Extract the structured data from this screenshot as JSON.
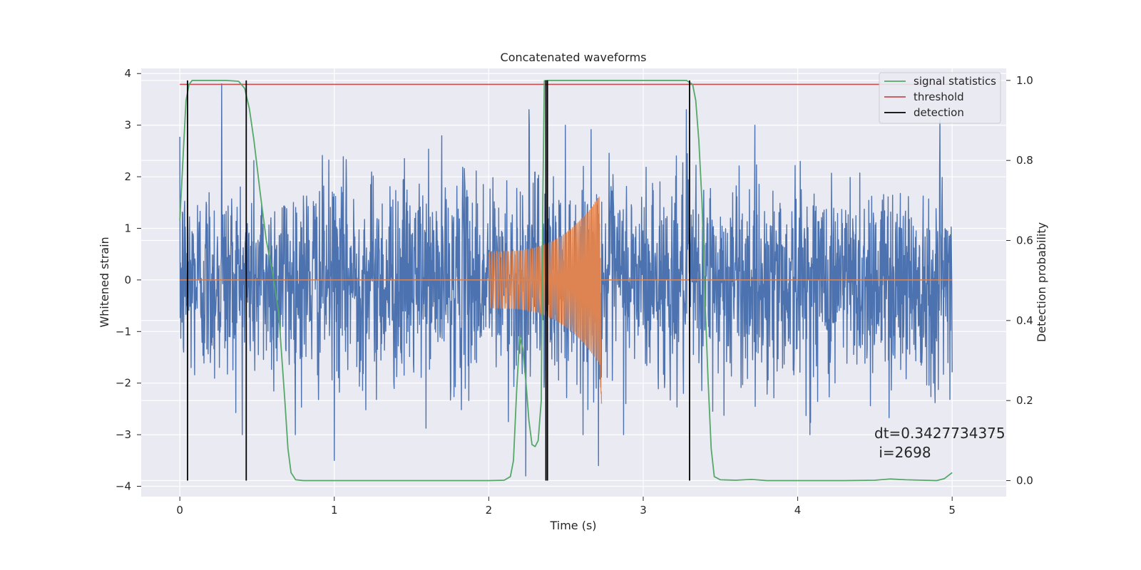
{
  "chart_data": {
    "type": "line",
    "title": "Concatenated waveforms",
    "xlabel": "Time (s)",
    "ylabel_left": "Whitened strain",
    "ylabel_right": "Detection probability",
    "xlim": [
      -0.25,
      5.35
    ],
    "ylim_left": [
      -4.2,
      4.1
    ],
    "ylim_right": [
      -0.04,
      1.03
    ],
    "x_ticks": [
      0,
      1,
      2,
      3,
      4,
      5
    ],
    "y_ticks_left": [
      -4,
      -3,
      -2,
      -1,
      0,
      1,
      2,
      3,
      4
    ],
    "y_ticks_right": [
      0.0,
      0.2,
      0.4,
      0.6,
      0.8,
      1.0
    ],
    "x_tick_labels": [
      "0",
      "1",
      "2",
      "3",
      "4",
      "5"
    ],
    "y_tick_labels_left": [
      "−4",
      "−3",
      "−2",
      "−1",
      "0",
      "1",
      "2",
      "3",
      "4"
    ],
    "y_tick_labels_right": [
      "0.0",
      "0.2",
      "0.4",
      "0.6",
      "0.8",
      "1.0"
    ],
    "grid": true,
    "legend_position": "top-right",
    "series": [
      {
        "name": "signal statistics",
        "axis": "right",
        "color": "#55a868",
        "x": [
          0.0,
          0.02,
          0.04,
          0.06,
          0.08,
          0.1,
          0.15,
          0.2,
          0.3,
          0.38,
          0.42,
          0.45,
          0.48,
          0.52,
          0.56,
          0.6,
          0.64,
          0.68,
          0.7,
          0.72,
          0.75,
          0.8,
          1.0,
          1.5,
          2.0,
          2.1,
          2.14,
          2.16,
          2.18,
          2.2,
          2.22,
          2.24,
          2.26,
          2.28,
          2.3,
          2.32,
          2.34,
          2.35,
          2.36,
          2.38,
          2.5,
          3.0,
          3.28,
          3.32,
          3.34,
          3.36,
          3.38,
          3.4,
          3.42,
          3.44,
          3.46,
          3.5,
          3.6,
          3.7,
          3.8,
          4.0,
          4.3,
          4.5,
          4.6,
          4.7,
          4.9,
          4.95,
          5.0
        ],
        "y": [
          0.65,
          0.8,
          0.95,
          0.99,
          1.0,
          1.0,
          1.0,
          1.0,
          1.0,
          0.998,
          0.98,
          0.93,
          0.85,
          0.72,
          0.6,
          0.52,
          0.42,
          0.2,
          0.08,
          0.02,
          0.002,
          0.0,
          0.0,
          0.0,
          0.0,
          0.001,
          0.01,
          0.05,
          0.22,
          0.36,
          0.33,
          0.25,
          0.15,
          0.09,
          0.085,
          0.1,
          0.2,
          0.7,
          0.999,
          1.0,
          1.0,
          1.0,
          1.0,
          0.99,
          0.95,
          0.85,
          0.7,
          0.45,
          0.25,
          0.08,
          0.01,
          0.002,
          0.001,
          0.003,
          0.0,
          0.0,
          0.0,
          0.001,
          0.004,
          0.002,
          0.0,
          0.005,
          0.02
        ]
      },
      {
        "name": "threshold",
        "axis": "right",
        "color": "#c44e52",
        "x": [
          0,
          5
        ],
        "y": [
          0.99,
          0.99
        ]
      },
      {
        "name": "detection",
        "axis": "right",
        "color": "#000000",
        "x": [
          0.05,
          0.43,
          2.37,
          2.38,
          3.3
        ]
      }
    ],
    "strain": {
      "color": "#4c72b0",
      "x_range": [
        0,
        5
      ],
      "typical_amplitude": 1.0,
      "extremes": [
        {
          "x": 0.27,
          "y": 3.8
        },
        {
          "x": 1.0,
          "y": -3.5
        },
        {
          "x": 2.24,
          "y": -3.8
        },
        {
          "x": 2.26,
          "y": 3.3
        },
        {
          "x": 2.71,
          "y": -3.6
        },
        {
          "x": 3.28,
          "y": 3.3
        },
        {
          "x": 4.92,
          "y": 3.1
        }
      ]
    },
    "injected_waveform": {
      "color": "#dd8452",
      "x_range": [
        2.0,
        2.73
      ],
      "amplitude_start": 0.55,
      "amplitude_peak": 1.7,
      "amplitude_min_at_peak": -2.4
    },
    "annotation": [
      "dt=0.3427734375",
      " i=2698"
    ]
  }
}
